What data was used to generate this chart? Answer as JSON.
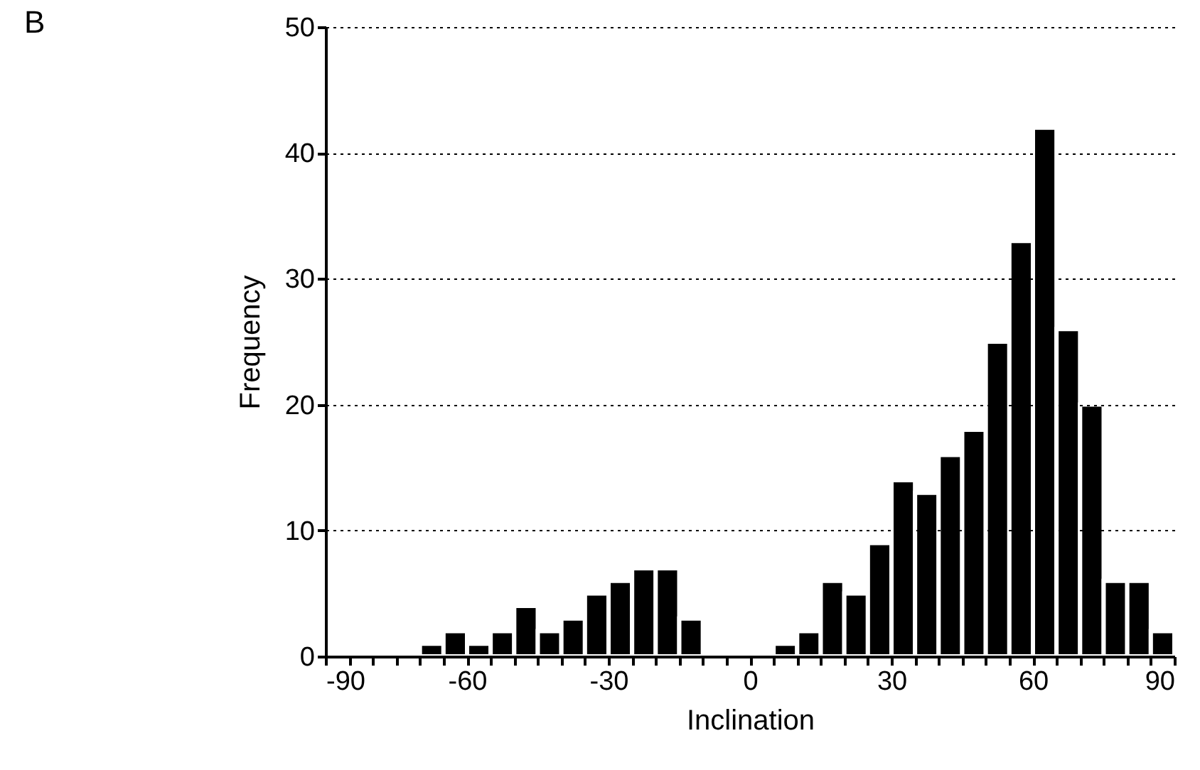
{
  "chart_data": {
    "type": "histogram",
    "xlabel": "Inclination",
    "ylabel": "Frequency",
    "annotations": [
      "B"
    ],
    "bins": [
      -90,
      -85,
      -80,
      -75,
      -70,
      -65,
      -60,
      -55,
      -50,
      -45,
      -40,
      -35,
      -30,
      -25,
      -20,
      -15,
      -10,
      -5,
      0,
      5,
      10,
      15,
      20,
      25,
      30,
      35,
      40,
      45,
      50,
      55,
      60,
      65,
      70,
      75,
      80,
      85,
      90
    ],
    "values": [
      0,
      0,
      0,
      0,
      1,
      2,
      1,
      2,
      4,
      2,
      3,
      5,
      6,
      7,
      7,
      3,
      0,
      0,
      0,
      1,
      2,
      6,
      5,
      9,
      14,
      13,
      16,
      18,
      25,
      33,
      42,
      26,
      20,
      6,
      6,
      2
    ],
    "color": "#000000",
    "xlim": [
      -90,
      90
    ],
    "xticks": [
      -90,
      {
        "value": -85,
        "label": null
      },
      {
        "value": -80,
        "label": null
      },
      {
        "value": -75,
        "label": null
      },
      {
        "value": -70,
        "label": null
      },
      {
        "value": -65,
        "label": null
      },
      -60,
      {
        "value": -55,
        "label": null
      },
      {
        "value": -50,
        "label": null
      },
      {
        "value": -45,
        "label": null
      },
      {
        "value": -40,
        "label": null
      },
      {
        "value": -35,
        "label": null
      },
      -30,
      {
        "value": -25,
        "label": null
      },
      {
        "value": -20,
        "label": null
      },
      {
        "value": -15,
        "label": null
      },
      {
        "value": -10,
        "label": null
      },
      {
        "value": -5,
        "label": null
      },
      0,
      {
        "value": 5,
        "label": null
      },
      {
        "value": 10,
        "label": null
      },
      {
        "value": 15,
        "label": null
      },
      {
        "value": 20,
        "label": null
      },
      {
        "value": 25,
        "label": null
      },
      30,
      {
        "value": 35,
        "label": null
      },
      {
        "value": 40,
        "label": null
      },
      {
        "value": 45,
        "label": null
      },
      {
        "value": 50,
        "label": null
      },
      {
        "value": 55,
        "label": null
      },
      60,
      {
        "value": 65,
        "label": null
      },
      {
        "value": 70,
        "label": null
      },
      {
        "value": 75,
        "label": null
      },
      {
        "value": 80,
        "label": null
      },
      {
        "value": 85,
        "label": null
      },
      90
    ],
    "ylim": [
      0,
      50
    ],
    "yticks": [
      0,
      10,
      20,
      30,
      40,
      50
    ],
    "grid": "y"
  }
}
